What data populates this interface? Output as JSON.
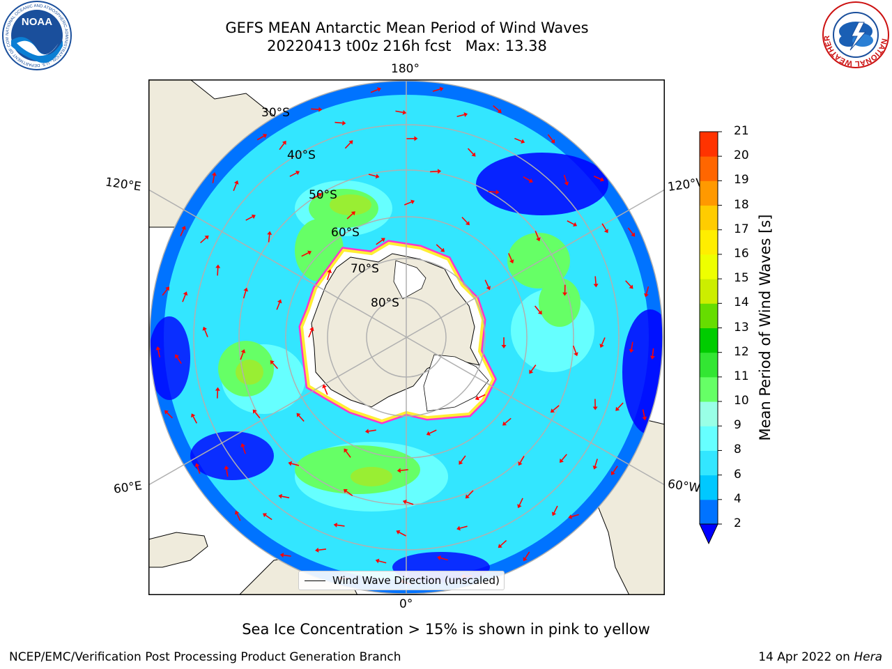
{
  "title": {
    "line1": "GEFS MEAN Antarctic Mean Period of Wind Waves",
    "line2": "20220413 t00z 216h fcst   Max: 13.38"
  },
  "logos": {
    "left": {
      "text": "NOAA",
      "ring_text": "NATIONAL OCEANIC AND ATMOSPHERIC ADMINISTRATION · U.S. DEPARTMENT OF COMMERCE"
    },
    "right": {
      "ring_text": "NATIONAL WEATHER SERVICE"
    }
  },
  "map": {
    "projection": "south-polar-stereographic",
    "lon_labels": {
      "top": "180°",
      "upper_left": "120°E",
      "upper_right": "120°W",
      "lower_left": "60°E",
      "lower_right": "60°W",
      "bottom": "0°"
    },
    "lat_labels": [
      "30°S",
      "40°S",
      "50°S",
      "60°S",
      "70°S",
      "80°S"
    ],
    "colors": {
      "land": "#efebdc",
      "sea_ice_edge": [
        "#ff33cc",
        "#ffaa33",
        "#ffee33"
      ],
      "ice_interior": "#ffffff",
      "arrows": "#ff0000",
      "gridlines": "#b0b0b0"
    }
  },
  "colorbar": {
    "label": "Mean Period of Wind Waves [s]",
    "ticks": [
      "2",
      "4",
      "6",
      "8",
      "9",
      "10",
      "11",
      "12",
      "13",
      "14",
      "15",
      "16",
      "17",
      "18",
      "19",
      "20",
      "21"
    ],
    "colors": [
      "#0073ff",
      "#00c8ff",
      "#33e6ff",
      "#66ffff",
      "#99ffe6",
      "#66ff66",
      "#33e633",
      "#00cc00",
      "#66dd00",
      "#ccee00",
      "#eeff00",
      "#ffee00",
      "#ffcc00",
      "#ff9900",
      "#ff6600",
      "#ff3300",
      "#ff0000"
    ],
    "extend_color": "#0000ff"
  },
  "legend": {
    "label": "Wind Wave Direction (unscaled)"
  },
  "footnote": "Sea Ice Concentration > 15% is shown in pink to yellow",
  "footer": {
    "left": "NCEP/EMC/Verification Post Processing Product Generation Branch",
    "right_date": "14 Apr 2022 on",
    "right_host": "Hera"
  }
}
